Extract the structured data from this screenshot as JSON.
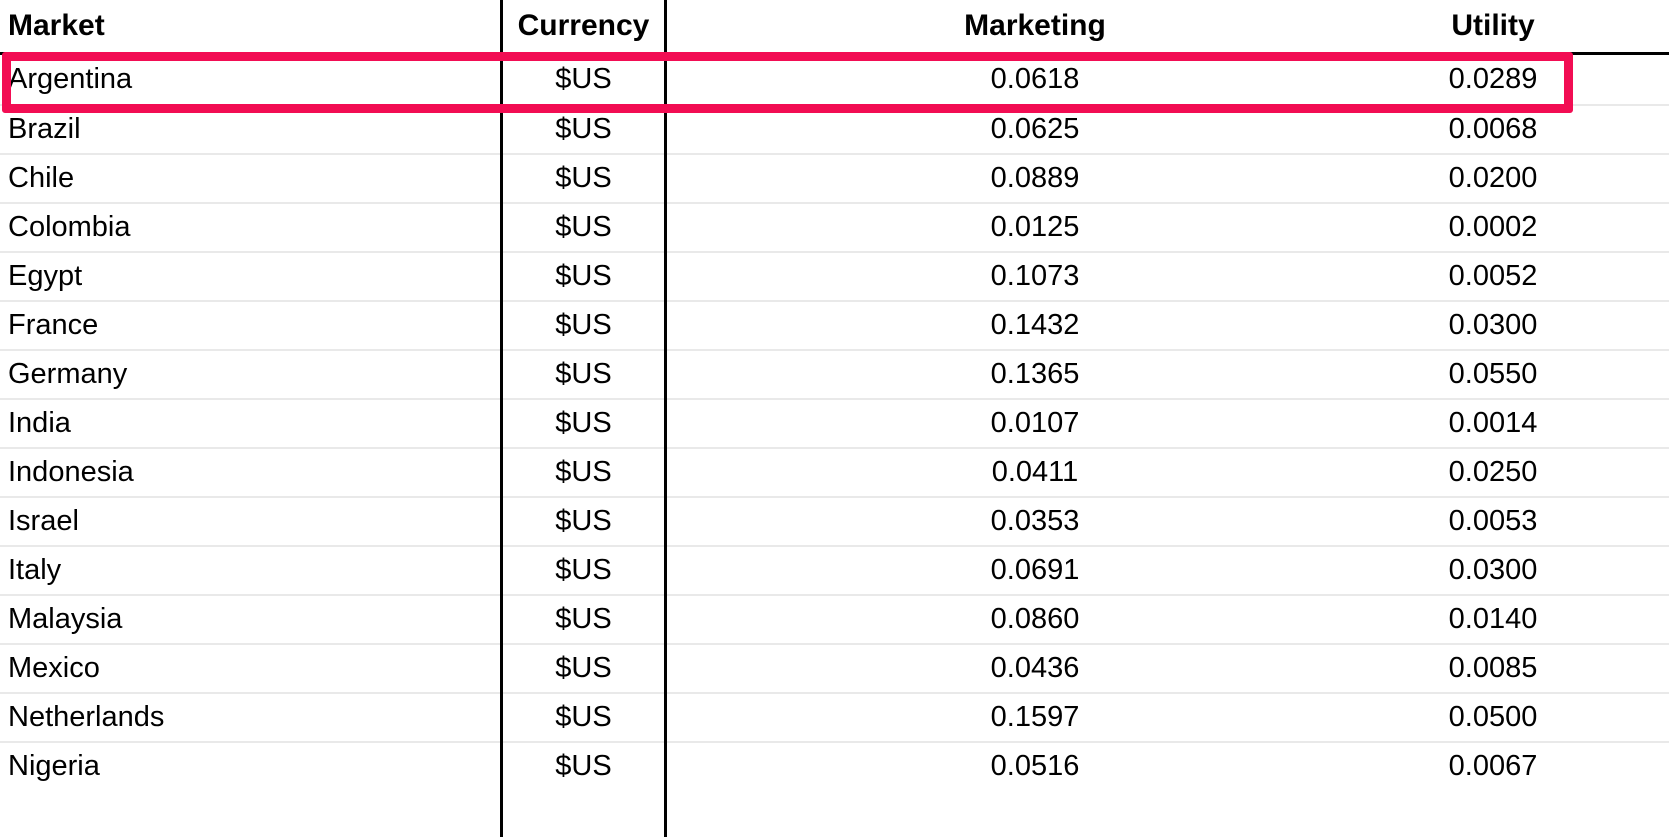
{
  "table": {
    "headers": {
      "market": "Market",
      "currency": "Currency",
      "marketing": "Marketing",
      "utility": "Utility"
    },
    "rows": [
      {
        "market": "Argentina",
        "currency": "$US",
        "marketing": "0.0618",
        "utility": "0.0289"
      },
      {
        "market": "Brazil",
        "currency": "$US",
        "marketing": "0.0625",
        "utility": "0.0068"
      },
      {
        "market": "Chile",
        "currency": "$US",
        "marketing": "0.0889",
        "utility": "0.0200"
      },
      {
        "market": "Colombia",
        "currency": "$US",
        "marketing": "0.0125",
        "utility": "0.0002"
      },
      {
        "market": "Egypt",
        "currency": "$US",
        "marketing": "0.1073",
        "utility": "0.0052"
      },
      {
        "market": "France",
        "currency": "$US",
        "marketing": "0.1432",
        "utility": "0.0300"
      },
      {
        "market": "Germany",
        "currency": "$US",
        "marketing": "0.1365",
        "utility": "0.0550"
      },
      {
        "market": "India",
        "currency": "$US",
        "marketing": "0.0107",
        "utility": "0.0014"
      },
      {
        "market": "Indonesia",
        "currency": "$US",
        "marketing": "0.0411",
        "utility": "0.0250"
      },
      {
        "market": "Israel",
        "currency": "$US",
        "marketing": "0.0353",
        "utility": "0.0053"
      },
      {
        "market": "Italy",
        "currency": "$US",
        "marketing": "0.0691",
        "utility": "0.0300"
      },
      {
        "market": "Malaysia",
        "currency": "$US",
        "marketing": "0.0860",
        "utility": "0.0140"
      },
      {
        "market": "Mexico",
        "currency": "$US",
        "marketing": "0.0436",
        "utility": "0.0085"
      },
      {
        "market": "Netherlands",
        "currency": "$US",
        "marketing": "0.1597",
        "utility": "0.0500"
      },
      {
        "market": "Nigeria",
        "currency": "$US",
        "marketing": "0.0516",
        "utility": "0.0067"
      }
    ]
  },
  "annotation": {
    "highlighted_market": "Argentina",
    "highlight_color": "#f20d53"
  },
  "colors": {
    "grid_line_black": "#000000",
    "row_separator": "#e9e9e9",
    "text": "#000000",
    "background": "#ffffff"
  }
}
